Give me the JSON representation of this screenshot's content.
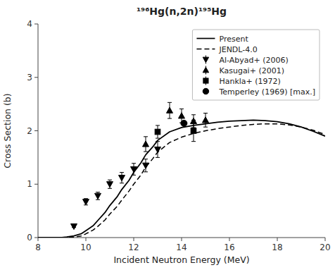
{
  "chart_data": {
    "type": "line",
    "title": "¹⁹⁶Hg(n,2n)¹⁹⁵Hg",
    "x_label": "Incident Neutron Energy (MeV)",
    "y_label": "Cross Section (b)",
    "xlim": [
      8,
      20
    ],
    "ylim": [
      0,
      4
    ],
    "xticks": [
      8,
      10,
      12,
      14,
      16,
      18,
      20
    ],
    "yticks": [
      0,
      1,
      2,
      3,
      4
    ],
    "grid": false,
    "legend": "upper right",
    "series": [
      {
        "name": "Present",
        "type": "line",
        "line_style": "solid",
        "color": "#000000",
        "x": [
          8.0,
          8.5,
          9.0,
          9.2,
          9.5,
          9.8,
          10.0,
          10.3,
          10.5,
          10.8,
          11.0,
          11.3,
          11.5,
          11.8,
          12.0,
          12.3,
          12.5,
          12.8,
          13.0,
          13.5,
          14.0,
          14.5,
          15.0,
          15.5,
          16.0,
          16.5,
          17.0,
          17.5,
          18.0,
          18.5,
          19.0,
          19.5,
          20.0
        ],
        "values": [
          0.0,
          0.0,
          0.0,
          0.01,
          0.03,
          0.07,
          0.13,
          0.22,
          0.32,
          0.47,
          0.6,
          0.76,
          0.9,
          1.07,
          1.22,
          1.4,
          1.55,
          1.7,
          1.82,
          1.98,
          2.06,
          2.1,
          2.13,
          2.16,
          2.18,
          2.19,
          2.2,
          2.19,
          2.17,
          2.13,
          2.07,
          1.99,
          1.9
        ]
      },
      {
        "name": "JENDL-4.0",
        "type": "line",
        "line_style": "dashed",
        "color": "#000000",
        "x": [
          8.0,
          8.5,
          9.0,
          9.2,
          9.5,
          9.8,
          10.0,
          10.3,
          10.5,
          10.8,
          11.0,
          11.3,
          11.5,
          11.8,
          12.0,
          12.3,
          12.5,
          12.8,
          13.0,
          13.5,
          14.0,
          14.5,
          15.0,
          15.5,
          16.0,
          16.5,
          17.0,
          17.5,
          18.0,
          18.5,
          19.0,
          19.5,
          20.0
        ],
        "values": [
          0.0,
          0.0,
          0.0,
          0.0,
          0.01,
          0.03,
          0.07,
          0.14,
          0.21,
          0.33,
          0.44,
          0.58,
          0.7,
          0.87,
          1.0,
          1.17,
          1.32,
          1.48,
          1.6,
          1.78,
          1.88,
          1.95,
          2.0,
          2.04,
          2.07,
          2.1,
          2.12,
          2.13,
          2.13,
          2.11,
          2.07,
          2.01,
          1.93
        ]
      },
      {
        "name": "Al-Abyad+ (2006)",
        "type": "scatter",
        "marker": "triangle-down",
        "color": "#000000",
        "x": [
          9.5,
          10.0,
          10.5,
          11.0,
          11.5,
          12.0,
          12.5,
          13.0
        ],
        "values": [
          0.21,
          0.67,
          0.78,
          1.0,
          1.12,
          1.28,
          1.35,
          1.65
        ],
        "errors": [
          0.02,
          0.06,
          0.07,
          0.08,
          0.1,
          0.11,
          0.12,
          0.15
        ]
      },
      {
        "name": "Kasugai+ (2001)",
        "type": "scatter",
        "marker": "triangle-up",
        "color": "#000000",
        "x": [
          12.5,
          13.5,
          14.0,
          14.5,
          15.0
        ],
        "values": [
          1.75,
          2.38,
          2.28,
          2.18,
          2.2
        ],
        "errors": [
          0.14,
          0.15,
          0.13,
          0.12,
          0.13
        ]
      },
      {
        "name": "Hankla+ (1972)",
        "type": "scatter",
        "marker": "square",
        "color": "#000000",
        "x": [
          13.0,
          14.5
        ],
        "values": [
          1.98,
          2.0
        ],
        "errors": [
          0.12,
          0.2
        ]
      },
      {
        "name": "Temperley (1969) [max.]",
        "type": "scatter",
        "marker": "circle",
        "color": "#000000",
        "x": [
          14.1
        ],
        "values": [
          2.14
        ]
      }
    ]
  }
}
